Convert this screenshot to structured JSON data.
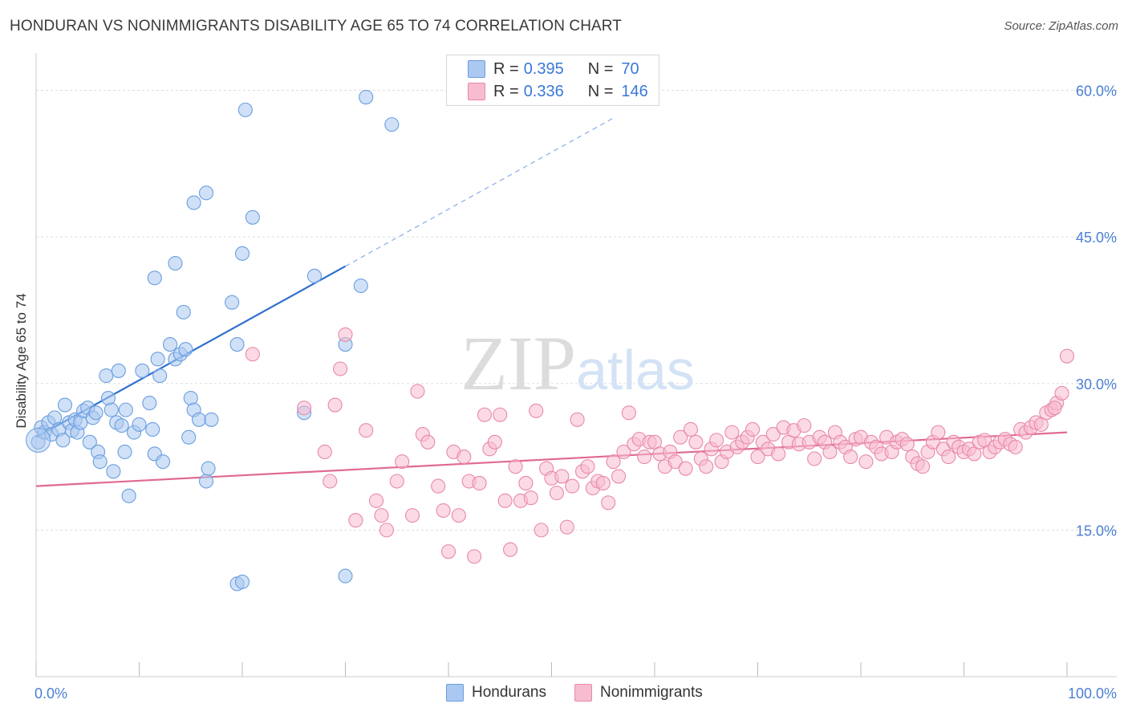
{
  "title": "HONDURAN VS NONIMMIGRANTS DISABILITY AGE 65 TO 74 CORRELATION CHART",
  "source": "Source: ZipAtlas.com",
  "legend_stats": [
    {
      "r_label": "R =",
      "r_value": "0.395",
      "n_label": "N =",
      "n_value": "70",
      "color": "#aac8f0",
      "border": "#6a9ee0"
    },
    {
      "r_label": "R =",
      "r_value": "0.336",
      "n_label": "N =",
      "n_value": "146",
      "color": "#f7bcd0",
      "border": "#e889a8"
    }
  ],
  "bottom_legend": [
    {
      "label": "Hondurans",
      "color": "#aac8f0",
      "border": "#6a9ee0"
    },
    {
      "label": "Nonimmigrants",
      "color": "#f7bcd0",
      "border": "#e889a8"
    }
  ],
  "watermark": "ZIPatlas",
  "chart_data": {
    "type": "scatter",
    "xlabel": "",
    "ylabel": "Disability Age 65 to 74",
    "xlim": [
      0,
      100
    ],
    "ylim": [
      0,
      63
    ],
    "x_tick_labels": [
      "0.0%",
      "100.0%"
    ],
    "y_ticks": [
      15,
      30,
      45,
      60
    ],
    "y_tick_labels": [
      "15.0%",
      "30.0%",
      "45.0%",
      "60.0%"
    ],
    "grid": true,
    "series": [
      {
        "name": "Hondurans",
        "color": "#aac8f0",
        "stroke": "#6a9ee0",
        "line_color": "#2f6fcf",
        "trend": {
          "x0": 0,
          "y0": 24.5,
          "x1": 30,
          "y1": 42.0,
          "dash_to_x": 56
        },
        "points": [
          [
            0.2,
            24.0
          ],
          [
            0.5,
            25.5
          ],
          [
            0.8,
            25.0
          ],
          [
            1.2,
            26.0
          ],
          [
            1.5,
            24.8
          ],
          [
            1.8,
            26.5
          ],
          [
            2.2,
            25.3
          ],
          [
            2.6,
            24.2
          ],
          [
            2.8,
            27.8
          ],
          [
            3.2,
            26.0
          ],
          [
            3.5,
            25.2
          ],
          [
            3.8,
            26.3
          ],
          [
            4.0,
            25.0
          ],
          [
            4.3,
            26.0
          ],
          [
            4.6,
            27.2
          ],
          [
            5.0,
            27.5
          ],
          [
            5.2,
            24.0
          ],
          [
            5.5,
            26.5
          ],
          [
            5.8,
            27.0
          ],
          [
            6.0,
            23.0
          ],
          [
            6.2,
            22.0
          ],
          [
            6.8,
            30.8
          ],
          [
            7.0,
            28.5
          ],
          [
            7.3,
            27.3
          ],
          [
            7.8,
            26.0
          ],
          [
            8.0,
            31.3
          ],
          [
            8.3,
            25.7
          ],
          [
            7.5,
            21.0
          ],
          [
            8.7,
            27.3
          ],
          [
            8.6,
            23.0
          ],
          [
            9.0,
            18.5
          ],
          [
            9.5,
            25.0
          ],
          [
            10.0,
            25.8
          ],
          [
            11.0,
            28.0
          ],
          [
            11.3,
            25.3
          ],
          [
            11.5,
            22.8
          ],
          [
            10.3,
            31.3
          ],
          [
            12.0,
            30.8
          ],
          [
            12.3,
            22.0
          ],
          [
            11.5,
            40.8
          ],
          [
            13.0,
            34.0
          ],
          [
            13.5,
            32.5
          ],
          [
            14.0,
            33.0
          ],
          [
            14.5,
            33.5
          ],
          [
            15.0,
            28.5
          ],
          [
            15.3,
            27.3
          ],
          [
            15.8,
            26.3
          ],
          [
            16.5,
            20.0
          ],
          [
            16.7,
            21.3
          ],
          [
            14.8,
            24.5
          ],
          [
            17.0,
            26.3
          ],
          [
            11.8,
            32.5
          ],
          [
            13.5,
            42.3
          ],
          [
            14.3,
            37.3
          ],
          [
            15.3,
            48.5
          ],
          [
            16.5,
            49.5
          ],
          [
            19.0,
            38.3
          ],
          [
            19.5,
            34.0
          ],
          [
            20.0,
            43.3
          ],
          [
            21.0,
            47.0
          ],
          [
            20.3,
            58.0
          ],
          [
            26.0,
            27.0
          ],
          [
            27.0,
            41.0
          ],
          [
            30.0,
            34.0
          ],
          [
            31.5,
            40.0
          ],
          [
            34.5,
            56.5
          ],
          [
            32.0,
            59.3
          ],
          [
            19.5,
            9.5
          ],
          [
            20.0,
            9.7
          ],
          [
            30.0,
            10.3
          ]
        ]
      },
      {
        "name": "Nonimmigrants",
        "color": "#f7bcd0",
        "stroke": "#e889a8",
        "line_color": "#e06a92",
        "trend": {
          "x0": 0,
          "y0": 19.5,
          "x1": 100,
          "y1": 25.0
        },
        "points": [
          [
            21,
            33.0
          ],
          [
            26,
            27.5
          ],
          [
            28,
            23.0
          ],
          [
            28.5,
            20.0
          ],
          [
            29,
            27.8
          ],
          [
            29.5,
            31.5
          ],
          [
            30,
            35.0
          ],
          [
            31,
            16.0
          ],
          [
            32,
            25.2
          ],
          [
            33,
            18.0
          ],
          [
            33.5,
            16.5
          ],
          [
            34,
            15.0
          ],
          [
            35,
            20.0
          ],
          [
            35.5,
            22.0
          ],
          [
            36.5,
            16.5
          ],
          [
            37,
            29.2
          ],
          [
            37.5,
            24.8
          ],
          [
            38,
            24.0
          ],
          [
            39,
            19.5
          ],
          [
            39.5,
            17.0
          ],
          [
            40,
            12.8
          ],
          [
            40.5,
            23.0
          ],
          [
            41,
            16.5
          ],
          [
            41.5,
            22.5
          ],
          [
            42,
            20.0
          ],
          [
            42.5,
            12.3
          ],
          [
            43,
            19.8
          ],
          [
            43.5,
            26.8
          ],
          [
            44,
            23.3
          ],
          [
            44.5,
            24.0
          ],
          [
            45,
            26.8
          ],
          [
            45.5,
            18.0
          ],
          [
            46,
            13.0
          ],
          [
            46.5,
            21.5
          ],
          [
            47,
            18.0
          ],
          [
            47.5,
            19.8
          ],
          [
            48,
            18.3
          ],
          [
            48.5,
            27.2
          ],
          [
            49,
            15.0
          ],
          [
            49.5,
            21.3
          ],
          [
            50,
            20.3
          ],
          [
            50.5,
            18.8
          ],
          [
            51,
            20.5
          ],
          [
            51.5,
            15.3
          ],
          [
            52,
            19.5
          ],
          [
            52.5,
            26.3
          ],
          [
            53,
            21.0
          ],
          [
            53.5,
            21.5
          ],
          [
            54,
            19.3
          ],
          [
            54.5,
            20.0
          ],
          [
            55,
            19.8
          ],
          [
            55.5,
            17.8
          ],
          [
            56,
            22.0
          ],
          [
            56.5,
            20.5
          ],
          [
            57,
            23.0
          ],
          [
            57.5,
            27.0
          ],
          [
            58,
            23.8
          ],
          [
            58.5,
            24.3
          ],
          [
            59,
            22.5
          ],
          [
            59.5,
            24.0
          ],
          [
            60,
            24.0
          ],
          [
            60.5,
            22.8
          ],
          [
            61,
            21.5
          ],
          [
            61.5,
            23.0
          ],
          [
            62,
            22.0
          ],
          [
            62.5,
            24.5
          ],
          [
            63,
            21.3
          ],
          [
            63.5,
            25.3
          ],
          [
            64,
            24.0
          ],
          [
            64.5,
            22.3
          ],
          [
            65,
            21.5
          ],
          [
            65.5,
            23.3
          ],
          [
            66,
            24.2
          ],
          [
            66.5,
            22.0
          ],
          [
            67,
            23.0
          ],
          [
            67.5,
            25.0
          ],
          [
            68,
            23.5
          ],
          [
            68.5,
            24.0
          ],
          [
            69,
            24.5
          ],
          [
            69.5,
            25.3
          ],
          [
            70,
            22.5
          ],
          [
            70.5,
            24.0
          ],
          [
            71,
            23.3
          ],
          [
            71.5,
            24.8
          ],
          [
            72,
            22.8
          ],
          [
            72.5,
            25.5
          ],
          [
            73,
            24.0
          ],
          [
            73.5,
            25.2
          ],
          [
            74,
            23.8
          ],
          [
            74.5,
            25.7
          ],
          [
            75,
            24.0
          ],
          [
            75.5,
            22.3
          ],
          [
            76,
            24.5
          ],
          [
            76.5,
            24.0
          ],
          [
            77,
            23.0
          ],
          [
            77.5,
            25.0
          ],
          [
            78,
            24.0
          ],
          [
            78.5,
            23.5
          ],
          [
            79,
            22.5
          ],
          [
            79.5,
            24.3
          ],
          [
            80,
            24.5
          ],
          [
            80.5,
            22.0
          ],
          [
            81,
            24.0
          ],
          [
            81.5,
            23.5
          ],
          [
            82,
            22.8
          ],
          [
            82.5,
            24.5
          ],
          [
            83,
            23.0
          ],
          [
            83.5,
            24.0
          ],
          [
            84,
            24.3
          ],
          [
            84.5,
            23.8
          ],
          [
            85,
            22.5
          ],
          [
            85.5,
            21.8
          ],
          [
            86,
            21.5
          ],
          [
            86.5,
            23.0
          ],
          [
            87,
            24.0
          ],
          [
            87.5,
            25.0
          ],
          [
            88,
            23.3
          ],
          [
            88.5,
            22.5
          ],
          [
            89,
            24.0
          ],
          [
            89.5,
            23.5
          ],
          [
            90,
            23.0
          ],
          [
            90.5,
            23.3
          ],
          [
            91,
            22.8
          ],
          [
            91.5,
            24.0
          ],
          [
            92,
            24.2
          ],
          [
            92.5,
            23.0
          ],
          [
            93,
            23.5
          ],
          [
            93.5,
            24.0
          ],
          [
            94,
            24.3
          ],
          [
            94.5,
            23.8
          ],
          [
            95,
            23.5
          ],
          [
            95.5,
            25.3
          ],
          [
            96,
            25.0
          ],
          [
            96.5,
            25.5
          ],
          [
            97,
            26.0
          ],
          [
            97.5,
            25.8
          ],
          [
            98,
            27.0
          ],
          [
            98.5,
            27.3
          ],
          [
            99,
            28.0
          ],
          [
            99.5,
            29.0
          ],
          [
            100,
            32.8
          ],
          [
            98.8,
            27.5
          ]
        ]
      }
    ]
  }
}
